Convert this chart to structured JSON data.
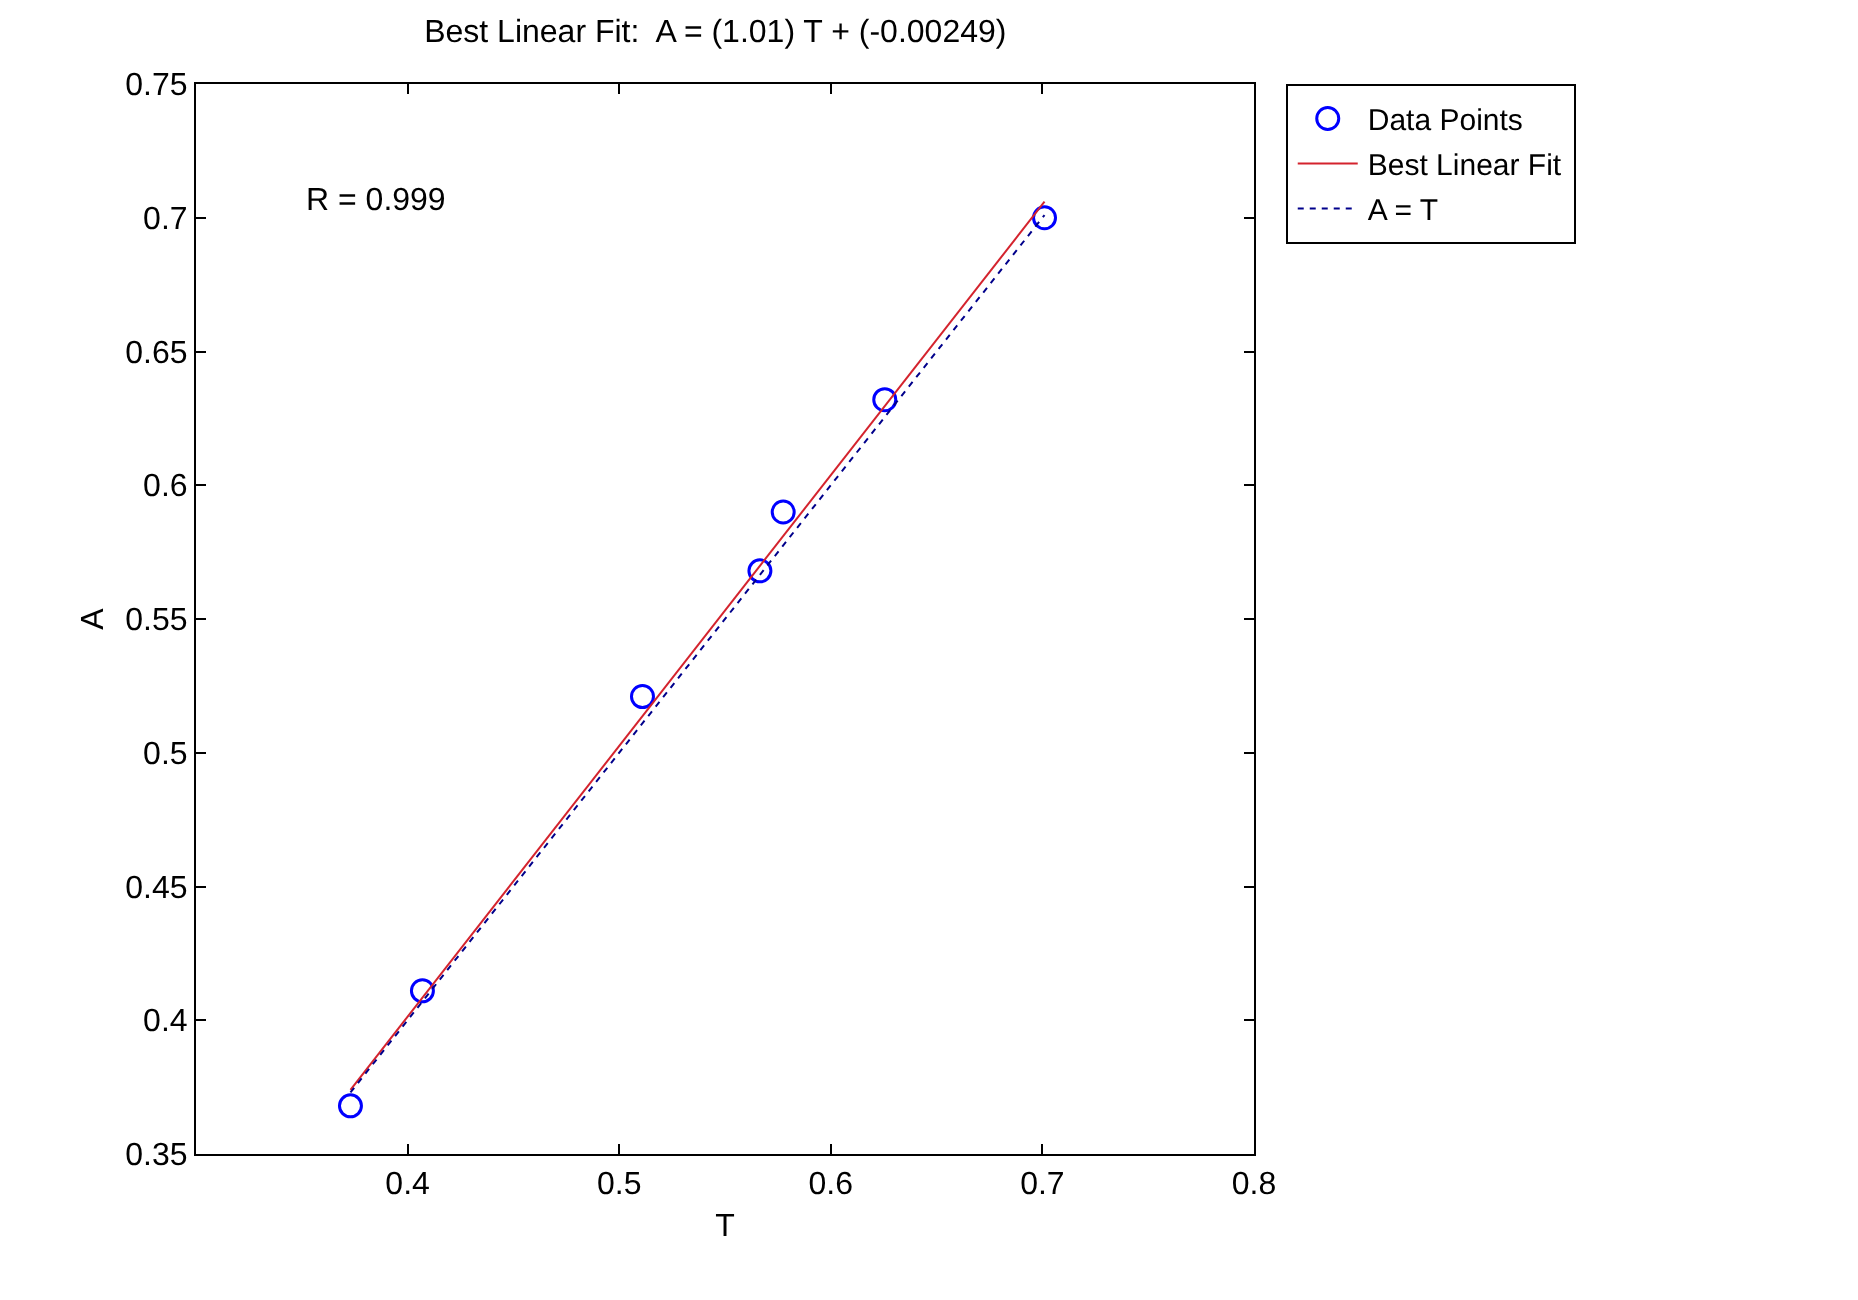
{
  "chart_data": {
    "type": "scatter",
    "title": "Best Linear Fit:  A = (1.01) T + (-0.00249)",
    "xlabel": "T",
    "ylabel": "A",
    "annotations": [
      "R = 0.999"
    ],
    "xlim": [
      0.3,
      0.8
    ],
    "xticks": [
      0.4,
      0.5,
      0.6,
      0.7,
      0.8
    ],
    "ylim": [
      0.35,
      0.75
    ],
    "yticks": [
      0.35,
      0.4,
      0.45,
      0.5,
      0.55,
      0.6,
      0.65,
      0.7,
      0.75
    ],
    "grid": false,
    "legend": "top right",
    "series": [
      {
        "name": "Data Points",
        "marker": "circle",
        "color": "#0000ff",
        "x": [
          0.373,
          0.407,
          0.511,
          0.5665,
          0.5775,
          0.6255,
          0.701
        ],
        "values": [
          0.368,
          0.411,
          0.521,
          0.568,
          0.59,
          0.632,
          0.7
        ]
      },
      {
        "name": "Best Linear Fit",
        "type": "line",
        "marker": "none",
        "line_style": "solid",
        "color": "#d4232d",
        "x": [
          0.373,
          0.701
        ],
        "values": [
          0.374,
          0.706
        ]
      },
      {
        "name": "A = T",
        "type": "line",
        "marker": "none",
        "line_style": "dotted",
        "color": "#00008b",
        "x": [
          0.373,
          0.701
        ],
        "values": [
          0.373,
          0.701
        ]
      }
    ]
  }
}
